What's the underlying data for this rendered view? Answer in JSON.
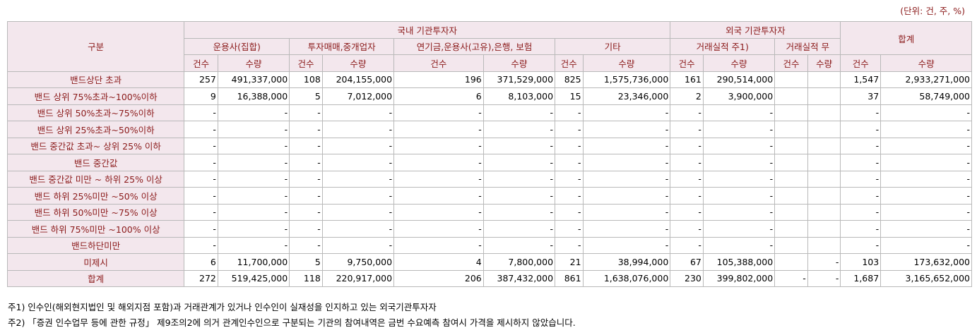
{
  "unit_note": "(단위: 건, 주, %)",
  "header": {
    "category": "구분",
    "domestic": "국내 기관투자자",
    "foreign": "외국 기관투자자",
    "total": "합계",
    "sub": [
      "운용사(집합)",
      "투자매매,중개업자",
      "연기금,운용사(고유),은행, 보험",
      "기타",
      "거래실적 주1)",
      "거래실적 무"
    ],
    "count": "건수",
    "qty": "수량"
  },
  "rows": [
    {
      "label": "밴드상단 초과",
      "c": [
        "257",
        "491,337,000",
        "108",
        "204,155,000",
        "196",
        "371,529,000",
        "825",
        "1,575,736,000",
        "161",
        "290,514,000",
        "",
        "",
        "1,547",
        "2,933,271,000"
      ]
    },
    {
      "label": "밴드 상위 75%초과~100%이하",
      "c": [
        "9",
        "16,388,000",
        "5",
        "7,012,000",
        "6",
        "8,103,000",
        "15",
        "23,346,000",
        "2",
        "3,900,000",
        "",
        "",
        "37",
        "58,749,000"
      ]
    },
    {
      "label": "밴드 상위 50%초과~75%이하",
      "c": [
        "-",
        "-",
        "-",
        "-",
        "-",
        "-",
        "-",
        "-",
        "-",
        "-",
        "",
        "",
        "-",
        "-"
      ]
    },
    {
      "label": "밴드 상위 25%초과~50%이하",
      "c": [
        "-",
        "-",
        "-",
        "-",
        "-",
        "-",
        "-",
        "-",
        "-",
        "-",
        "",
        "",
        "-",
        "-"
      ]
    },
    {
      "label": "밴드 중간값 초과~ 상위 25% 이하",
      "c": [
        "-",
        "-",
        "-",
        "-",
        "-",
        "-",
        "-",
        "-",
        "-",
        "-",
        "",
        "",
        "-",
        "-"
      ]
    },
    {
      "label": "밴드 중간값",
      "c": [
        "-",
        "-",
        "-",
        "-",
        "-",
        "-",
        "-",
        "-",
        "-",
        "-",
        "",
        "",
        "-",
        "-"
      ]
    },
    {
      "label": "밴드 중간값 미만 ~ 하위 25% 이상",
      "c": [
        "-",
        "-",
        "-",
        "-",
        "-",
        "-",
        "-",
        "-",
        "-",
        "-",
        "",
        "",
        "-",
        "-"
      ]
    },
    {
      "label": "밴드 하위 25%미만 ~50% 이상",
      "c": [
        "-",
        "-",
        "-",
        "-",
        "-",
        "-",
        "-",
        "-",
        "-",
        "-",
        "",
        "",
        "-",
        "-"
      ]
    },
    {
      "label": "밴드 하위 50%미만 ~75% 이상",
      "c": [
        "-",
        "-",
        "-",
        "-",
        "-",
        "-",
        "-",
        "-",
        "-",
        "-",
        "",
        "",
        "-",
        "-"
      ]
    },
    {
      "label": "밴드 하위 75%미만 ~100% 이상",
      "c": [
        "-",
        "-",
        "-",
        "-",
        "-",
        "-",
        "-",
        "-",
        "-",
        "-",
        "",
        "",
        "-",
        "-"
      ]
    },
    {
      "label": "밴드하단미만",
      "c": [
        "-",
        "-",
        "-",
        "-",
        "-",
        "-",
        "-",
        "-",
        "-",
        "-",
        "",
        "",
        "-",
        "-"
      ]
    },
    {
      "label": "미제시",
      "c": [
        "6",
        "11,700,000",
        "5",
        "9,750,000",
        "4",
        "7,800,000",
        "21",
        "38,994,000",
        "67",
        "105,388,000",
        "",
        "-",
        "103",
        "173,632,000"
      ]
    },
    {
      "label": "합계",
      "c": [
        "272",
        "519,425,000",
        "118",
        "220,917,000",
        "206",
        "387,432,000",
        "861",
        "1,638,076,000",
        "230",
        "399,802,000",
        "-",
        "-",
        "1,687",
        "3,165,652,000"
      ]
    }
  ],
  "notes": [
    "주1) 인수인(해외현지법인 및 해외지점 포함)과 거래관계가 있거나 인수인이 실재성을 인지하고 있는 외국기관투자자",
    "주2) 「증권 인수업무 등에 관한 규정」 제9조의2에 의거 관계인수인으로 구분되는 기관의 참여내역은 금번 수요예측 참여시 가격을 제시하지 않았습니다."
  ]
}
